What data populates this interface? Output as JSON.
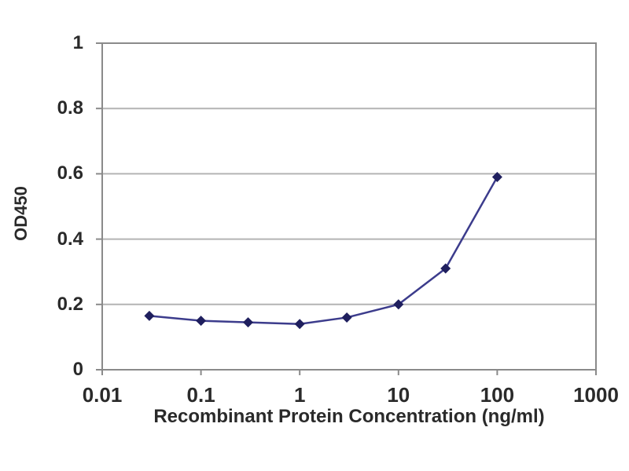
{
  "figure": {
    "background": "#ffffff",
    "text_color": "#2a2a2a"
  },
  "chart_data": {
    "type": "line",
    "title": "",
    "xlabel": "Recombinant Protein Concentration (ng/ml)",
    "ylabel": "OD450",
    "x_scale": "log",
    "xlim": [
      0.01,
      1000
    ],
    "ylim": [
      0,
      1
    ],
    "x_ticks": [
      0.01,
      0.1,
      1,
      10,
      100,
      1000
    ],
    "x_tick_labels": [
      "0.01",
      "0.1",
      "1",
      "10",
      "100",
      "1000"
    ],
    "y_ticks": [
      0,
      0.2,
      0.4,
      0.6,
      0.8,
      1
    ],
    "y_tick_labels": [
      "0",
      "0.2",
      "0.4",
      "0.6",
      "0.8",
      "1"
    ],
    "grid": "horizontal-only",
    "legend_position": "none",
    "axis_color": "#8a8a8a",
    "gridline_color": "#b4b4b4",
    "series": [
      {
        "name": "OD450",
        "marker": "diamond",
        "line_color": "#3c3c8c",
        "marker_color": "#1f1f5e",
        "x": [
          0.03,
          0.1,
          0.3,
          1,
          3,
          10,
          30,
          100
        ],
        "y": [
          0.165,
          0.15,
          0.145,
          0.14,
          0.16,
          0.2,
          0.31,
          0.59
        ]
      }
    ]
  }
}
